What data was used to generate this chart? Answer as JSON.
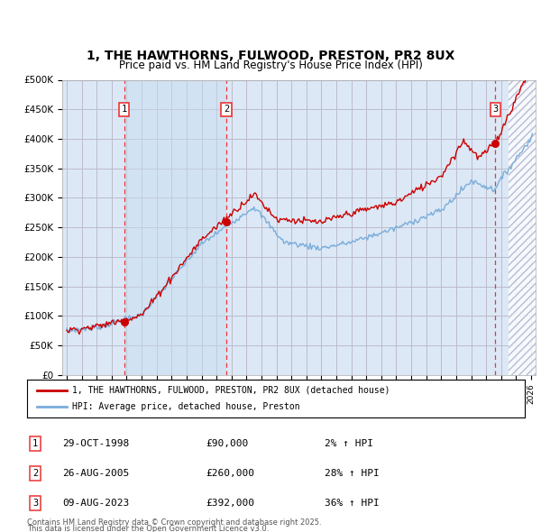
{
  "title": "1, THE HAWTHORNS, FULWOOD, PRESTON, PR2 8UX",
  "subtitle": "Price paid vs. HM Land Registry's House Price Index (HPI)",
  "ylim": [
    0,
    500000
  ],
  "yticks": [
    0,
    50000,
    100000,
    150000,
    200000,
    250000,
    300000,
    350000,
    400000,
    450000,
    500000
  ],
  "ytick_labels": [
    "£0",
    "£50K",
    "£100K",
    "£150K",
    "£200K",
    "£250K",
    "£300K",
    "£350K",
    "£400K",
    "£450K",
    "£500K"
  ],
  "sale_dates": [
    1998.83,
    2005.65,
    2023.61
  ],
  "sale_prices": [
    90000,
    260000,
    392000
  ],
  "sale_labels": [
    "1",
    "2",
    "3"
  ],
  "sale_info": [
    {
      "label": "1",
      "date": "29-OCT-1998",
      "price": "£90,000",
      "hpi": "2% ↑ HPI"
    },
    {
      "label": "2",
      "date": "26-AUG-2005",
      "price": "£260,000",
      "hpi": "28% ↑ HPI"
    },
    {
      "label": "3",
      "date": "09-AUG-2023",
      "price": "£392,000",
      "hpi": "36% ↑ HPI"
    }
  ],
  "legend_line1": "1, THE HAWTHORNS, FULWOOD, PRESTON, PR2 8UX (detached house)",
  "legend_line2": "HPI: Average price, detached house, Preston",
  "footer1": "Contains HM Land Registry data © Crown copyright and database right 2025.",
  "footer2": "This data is licensed under the Open Government Licence v3.0.",
  "line_color_red": "#cc0000",
  "line_color_blue": "#7aadda",
  "bg_color": "#dce8f5",
  "shade_color": "#dce8f5",
  "grid_color": "#bbbbcc",
  "dashed_color": "#ee3333",
  "hatch_color": "#aaaacc",
  "xlim_start": 1994.7,
  "xlim_end": 2026.3,
  "hatch_start": 2024.5,
  "highlight_start": 1998.83,
  "highlight_end": 2005.65
}
